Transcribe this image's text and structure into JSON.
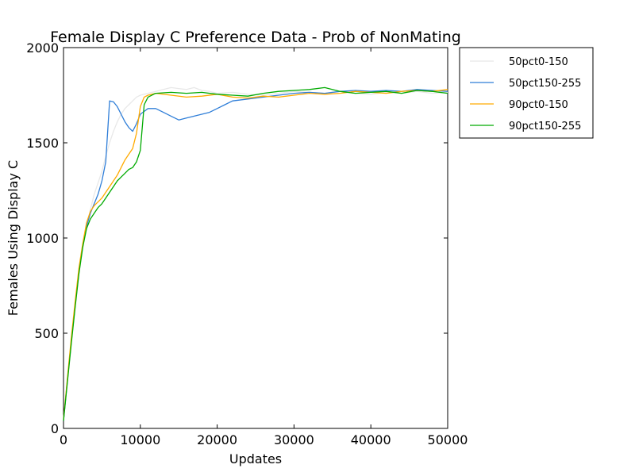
{
  "chart_data": {
    "type": "line",
    "title": "Female Display C Preference Data - Prob of NonMating",
    "xlabel": "Updates",
    "ylabel": "Females Using Display C",
    "xlim": [
      0,
      50000
    ],
    "ylim": [
      0,
      2000
    ],
    "xticks": [
      0,
      10000,
      20000,
      30000,
      40000,
      50000
    ],
    "yticks": [
      0,
      500,
      1000,
      1500,
      2000
    ],
    "xtick_labels": [
      "0",
      "10000",
      "20000",
      "30000",
      "40000",
      "50000"
    ],
    "ytick_labels": [
      "0",
      "500",
      "1000",
      "1500",
      "2000"
    ],
    "grid": false,
    "legend_position": "outside-top-right",
    "series": [
      {
        "name": "50pct0-150",
        "color": "#e8e8e8",
        "x": [
          0,
          500,
          1000,
          1500,
          2000,
          2500,
          3000,
          3500,
          4000,
          4500,
          5000,
          5500,
          6000,
          6500,
          7000,
          7500,
          8000,
          8500,
          9000,
          9500,
          10000,
          11000,
          12000,
          13000,
          14000,
          15000,
          16000,
          17000,
          18000,
          19000,
          20000,
          22000,
          24000,
          26000,
          28000,
          30000,
          32000,
          34000,
          36000,
          38000,
          40000,
          42000,
          44000,
          46000,
          48000,
          50000
        ],
        "y": [
          50,
          250,
          450,
          650,
          820,
          950,
          1060,
          1150,
          1230,
          1290,
          1350,
          1430,
          1500,
          1560,
          1610,
          1650,
          1680,
          1700,
          1720,
          1740,
          1750,
          1760,
          1770,
          1780,
          1790,
          1785,
          1780,
          1790,
          1775,
          1770,
          1760,
          1765,
          1755,
          1750,
          1760,
          1770,
          1765,
          1760,
          1770,
          1760,
          1755,
          1765,
          1760,
          1770,
          1760,
          1765
        ]
      },
      {
        "name": "50pct150-255",
        "color": "#2f7ed8",
        "x": [
          0,
          500,
          1000,
          1500,
          2000,
          2500,
          3000,
          3500,
          4000,
          4500,
          5000,
          5500,
          6000,
          6500,
          7000,
          7500,
          8000,
          8500,
          9000,
          9500,
          10000,
          11000,
          12000,
          13000,
          14000,
          15000,
          16000,
          17000,
          18000,
          19000,
          20000,
          21000,
          22000,
          24000,
          26000,
          28000,
          30000,
          32000,
          34000,
          36000,
          38000,
          40000,
          42000,
          44000,
          46000,
          48000,
          50000
        ],
        "y": [
          40,
          250,
          450,
          640,
          820,
          960,
          1060,
          1130,
          1180,
          1230,
          1300,
          1400,
          1720,
          1715,
          1690,
          1650,
          1610,
          1580,
          1560,
          1600,
          1650,
          1680,
          1680,
          1660,
          1640,
          1620,
          1630,
          1640,
          1650,
          1660,
          1680,
          1700,
          1720,
          1730,
          1740,
          1750,
          1760,
          1765,
          1760,
          1770,
          1775,
          1770,
          1775,
          1770,
          1780,
          1775,
          1770
        ]
      },
      {
        "name": "90pct0-150",
        "color": "#ffaa00",
        "x": [
          0,
          500,
          1000,
          1500,
          2000,
          2500,
          3000,
          3500,
          4000,
          4500,
          5000,
          5500,
          6000,
          6500,
          7000,
          7500,
          8000,
          8500,
          9000,
          9500,
          10000,
          10500,
          11000,
          12000,
          14000,
          16000,
          18000,
          20000,
          22000,
          24000,
          26000,
          28000,
          30000,
          32000,
          34000,
          36000,
          38000,
          40000,
          42000,
          44000,
          46000,
          48000,
          50000
        ],
        "y": [
          45,
          260,
          470,
          660,
          840,
          970,
          1080,
          1140,
          1170,
          1190,
          1210,
          1240,
          1270,
          1300,
          1330,
          1370,
          1410,
          1440,
          1470,
          1550,
          1690,
          1740,
          1750,
          1760,
          1750,
          1740,
          1745,
          1755,
          1740,
          1735,
          1745,
          1740,
          1750,
          1760,
          1755,
          1760,
          1770,
          1765,
          1760,
          1770,
          1775,
          1770,
          1780
        ]
      },
      {
        "name": "90pct150-255",
        "color": "#00aa00",
        "x": [
          0,
          500,
          1000,
          1500,
          2000,
          2500,
          3000,
          3500,
          4000,
          4500,
          5000,
          5500,
          6000,
          6500,
          7000,
          7500,
          8000,
          8500,
          9000,
          9500,
          10000,
          10500,
          11000,
          12000,
          14000,
          16000,
          18000,
          20000,
          22000,
          24000,
          26000,
          28000,
          30000,
          32000,
          34000,
          36000,
          38000,
          40000,
          42000,
          44000,
          46000,
          48000,
          50000
        ],
        "y": [
          40,
          240,
          440,
          630,
          810,
          950,
          1050,
          1100,
          1130,
          1160,
          1180,
          1210,
          1240,
          1270,
          1300,
          1320,
          1340,
          1360,
          1370,
          1400,
          1460,
          1700,
          1740,
          1760,
          1765,
          1760,
          1765,
          1755,
          1750,
          1745,
          1760,
          1770,
          1775,
          1780,
          1790,
          1770,
          1760,
          1765,
          1770,
          1760,
          1775,
          1770,
          1760
        ]
      }
    ]
  }
}
